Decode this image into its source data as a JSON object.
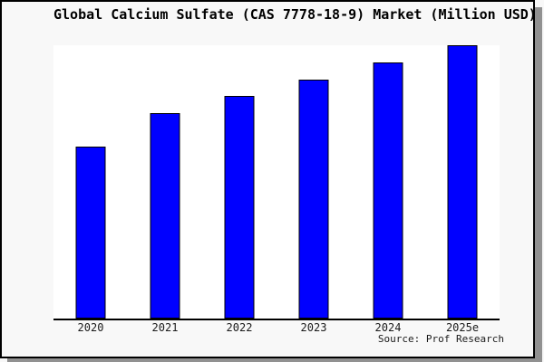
{
  "title": "Global Calcium Sulfate (CAS 7778-18-9) Market (Million USD)",
  "source": "Source: Prof Research",
  "chart_data": {
    "type": "bar",
    "title": "Global Calcium Sulfate (CAS 7778-18-9) Market (Million USD)",
    "categories": [
      "2020",
      "2021",
      "2022",
      "2023",
      "2024",
      "2025e"
    ],
    "values": [
      190,
      227,
      246,
      264,
      283,
      302
    ],
    "value_note": "No numeric y-axis is shown in the chart; values are measured bar heights in pixels (plot height 302px).",
    "values_relative_to_max": [
      0.63,
      0.75,
      0.81,
      0.87,
      0.94,
      1.0
    ],
    "xlabel": "",
    "ylabel": "",
    "y_axis": "hidden",
    "grid": false,
    "legend": "none",
    "source": "Source: Prof Research",
    "bar_color": "#0000ff",
    "bar_border_color": "#000000"
  },
  "colors": {
    "bar_fill": "#0000ff",
    "bar_border": "#000000",
    "plot_background": "#ffffff",
    "page_background": "#f8f8f8",
    "frame_border": "#000000",
    "frame_shadow": "#919191",
    "text": "#000000"
  }
}
